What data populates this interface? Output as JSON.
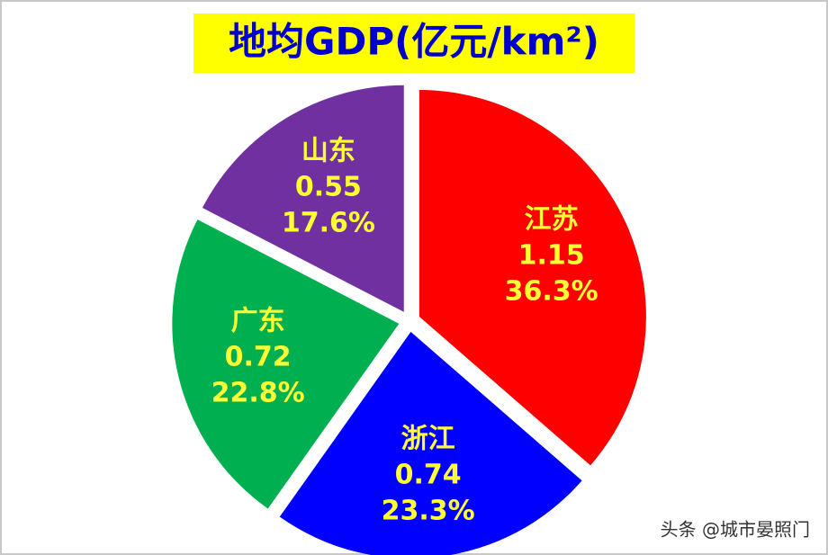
{
  "chart_data": {
    "type": "pie",
    "title": "地均GDP(亿元/km²)",
    "categories": [
      "江苏",
      "浙江",
      "广东",
      "山东"
    ],
    "values": [
      1.15,
      0.74,
      0.72,
      0.55
    ],
    "percent_labels": [
      "36.3%",
      "23.3%",
      "22.8%",
      "17.6%"
    ],
    "colors": [
      "#ff0000",
      "#0000ff",
      "#00b050",
      "#7030a0"
    ]
  },
  "watermark": "头条 @城市晏照门"
}
